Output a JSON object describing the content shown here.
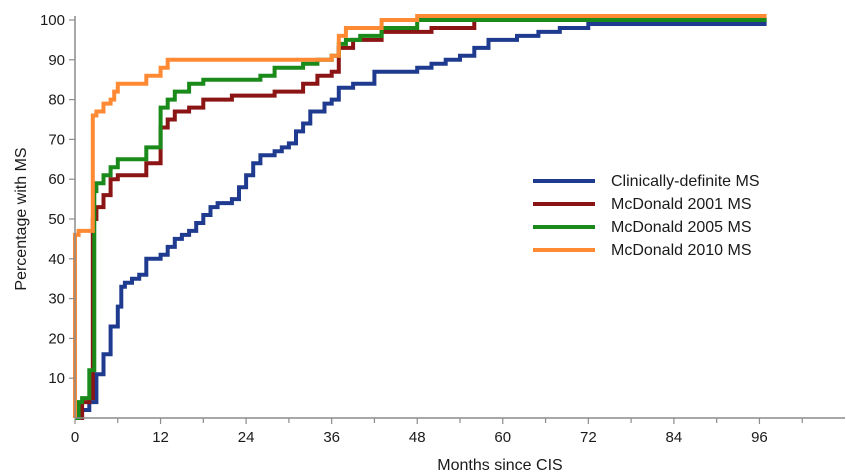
{
  "chart_data": {
    "type": "line",
    "step": true,
    "xlabel": "Months since CIS",
    "ylabel": "Percentage with MS",
    "xlim": [
      0,
      108
    ],
    "ylim": [
      0,
      100
    ],
    "xticks": [
      0,
      12,
      24,
      36,
      48,
      60,
      72,
      84,
      96
    ],
    "yticks": [
      10,
      20,
      30,
      40,
      50,
      60,
      70,
      80,
      90,
      100
    ],
    "grid": false,
    "legend_position": "right",
    "series": [
      {
        "name": "Clinically-definite MS",
        "color": "#1f3b8f",
        "points": [
          [
            0,
            0
          ],
          [
            1,
            0
          ],
          [
            1,
            2
          ],
          [
            2,
            2
          ],
          [
            2,
            4
          ],
          [
            3,
            4
          ],
          [
            3,
            11
          ],
          [
            4,
            11
          ],
          [
            4,
            16
          ],
          [
            5,
            16
          ],
          [
            5,
            23
          ],
          [
            6,
            23
          ],
          [
            6,
            28
          ],
          [
            6.5,
            28
          ],
          [
            6.5,
            33
          ],
          [
            7,
            33
          ],
          [
            7,
            34
          ],
          [
            8,
            34
          ],
          [
            8,
            35
          ],
          [
            9,
            35
          ],
          [
            9,
            36
          ],
          [
            10,
            36
          ],
          [
            10,
            40
          ],
          [
            12,
            40
          ],
          [
            12,
            41
          ],
          [
            13,
            41
          ],
          [
            13,
            43
          ],
          [
            14,
            43
          ],
          [
            14,
            45
          ],
          [
            15,
            45
          ],
          [
            15,
            46
          ],
          [
            16,
            46
          ],
          [
            16,
            47
          ],
          [
            17,
            47
          ],
          [
            17,
            49
          ],
          [
            18,
            49
          ],
          [
            18,
            51
          ],
          [
            19,
            51
          ],
          [
            19,
            53
          ],
          [
            20,
            53
          ],
          [
            20,
            54
          ],
          [
            21,
            54
          ],
          [
            21,
            54
          ],
          [
            22,
            54
          ],
          [
            22,
            55
          ],
          [
            23,
            55
          ],
          [
            23,
            58
          ],
          [
            24,
            58
          ],
          [
            24,
            61
          ],
          [
            25,
            61
          ],
          [
            25,
            64
          ],
          [
            26,
            64
          ],
          [
            26,
            66
          ],
          [
            28,
            66
          ],
          [
            28,
            67
          ],
          [
            29,
            67
          ],
          [
            29,
            68
          ],
          [
            30,
            68
          ],
          [
            30,
            69
          ],
          [
            31,
            69
          ],
          [
            31,
            72
          ],
          [
            32,
            72
          ],
          [
            32,
            74
          ],
          [
            33,
            74
          ],
          [
            33,
            77
          ],
          [
            35,
            77
          ],
          [
            35,
            79
          ],
          [
            36,
            79
          ],
          [
            36,
            80
          ],
          [
            37,
            80
          ],
          [
            37,
            83
          ],
          [
            39,
            83
          ],
          [
            39,
            84
          ],
          [
            42,
            84
          ],
          [
            42,
            87
          ],
          [
            48,
            87
          ],
          [
            48,
            88
          ],
          [
            50,
            88
          ],
          [
            50,
            89
          ],
          [
            52,
            89
          ],
          [
            52,
            90
          ],
          [
            54,
            90
          ],
          [
            54,
            91
          ],
          [
            56,
            91
          ],
          [
            56,
            93
          ],
          [
            58,
            93
          ],
          [
            58,
            95
          ],
          [
            62,
            95
          ],
          [
            62,
            96
          ],
          [
            65,
            96
          ],
          [
            65,
            97
          ],
          [
            68,
            97
          ],
          [
            68,
            98
          ],
          [
            72,
            98
          ],
          [
            72,
            99
          ],
          [
            97,
            99
          ]
        ]
      },
      {
        "name": "McDonald 2001 MS",
        "color": "#8b1414",
        "points": [
          [
            0,
            0
          ],
          [
            1,
            0
          ],
          [
            1,
            4
          ],
          [
            2,
            4
          ],
          [
            2,
            5
          ],
          [
            2.5,
            5
          ],
          [
            2.5,
            50
          ],
          [
            3,
            50
          ],
          [
            3,
            53
          ],
          [
            4,
            53
          ],
          [
            4,
            56
          ],
          [
            5,
            56
          ],
          [
            5,
            60
          ],
          [
            6,
            60
          ],
          [
            6,
            61
          ],
          [
            10,
            61
          ],
          [
            10,
            64
          ],
          [
            12,
            64
          ],
          [
            12,
            73
          ],
          [
            13,
            73
          ],
          [
            13,
            75
          ],
          [
            14,
            75
          ],
          [
            14,
            77
          ],
          [
            16,
            77
          ],
          [
            16,
            78
          ],
          [
            18,
            78
          ],
          [
            18,
            80
          ],
          [
            22,
            80
          ],
          [
            22,
            81
          ],
          [
            28,
            81
          ],
          [
            28,
            82
          ],
          [
            32,
            82
          ],
          [
            32,
            84
          ],
          [
            34,
            84
          ],
          [
            34,
            86
          ],
          [
            36,
            86
          ],
          [
            36,
            87
          ],
          [
            37,
            87
          ],
          [
            37,
            93
          ],
          [
            39,
            93
          ],
          [
            39,
            95
          ],
          [
            43,
            95
          ],
          [
            43,
            97
          ],
          [
            50,
            97
          ],
          [
            50,
            98
          ],
          [
            56,
            98
          ],
          [
            56,
            100
          ],
          [
            97,
            100
          ]
        ]
      },
      {
        "name": "McDonald 2005 MS",
        "color": "#1a8a1a",
        "points": [
          [
            0,
            0
          ],
          [
            0.5,
            0
          ],
          [
            0.5,
            4
          ],
          [
            1,
            4
          ],
          [
            1,
            5
          ],
          [
            2,
            5
          ],
          [
            2,
            12
          ],
          [
            2.7,
            12
          ],
          [
            2.7,
            57
          ],
          [
            3,
            57
          ],
          [
            3,
            59
          ],
          [
            4,
            59
          ],
          [
            4,
            61
          ],
          [
            5,
            61
          ],
          [
            5,
            63
          ],
          [
            6,
            63
          ],
          [
            6,
            65
          ],
          [
            10,
            65
          ],
          [
            10,
            68
          ],
          [
            12,
            68
          ],
          [
            12,
            78
          ],
          [
            13,
            78
          ],
          [
            13,
            80
          ],
          [
            14,
            80
          ],
          [
            14,
            82
          ],
          [
            16,
            82
          ],
          [
            16,
            84
          ],
          [
            18,
            84
          ],
          [
            18,
            85
          ],
          [
            26,
            85
          ],
          [
            26,
            86
          ],
          [
            28,
            86
          ],
          [
            28,
            88
          ],
          [
            32,
            88
          ],
          [
            32,
            89
          ],
          [
            34,
            89
          ],
          [
            34,
            90
          ],
          [
            36,
            90
          ],
          [
            36,
            91
          ],
          [
            37,
            91
          ],
          [
            37,
            94
          ],
          [
            38,
            94
          ],
          [
            38,
            95
          ],
          [
            40,
            95
          ],
          [
            40,
            96
          ],
          [
            43,
            96
          ],
          [
            43,
            98
          ],
          [
            48,
            98
          ],
          [
            48,
            100
          ],
          [
            97,
            100
          ]
        ]
      },
      {
        "name": "McDonald 2010 MS",
        "color": "#ff8a33",
        "points": [
          [
            0,
            0
          ],
          [
            0,
            46
          ],
          [
            0.5,
            46
          ],
          [
            0.5,
            47
          ],
          [
            2.5,
            47
          ],
          [
            2.5,
            76
          ],
          [
            3,
            76
          ],
          [
            3,
            77
          ],
          [
            4,
            77
          ],
          [
            4,
            79
          ],
          [
            5,
            79
          ],
          [
            5,
            80
          ],
          [
            5.5,
            80
          ],
          [
            5.5,
            82
          ],
          [
            6,
            82
          ],
          [
            6,
            84
          ],
          [
            10,
            84
          ],
          [
            10,
            86
          ],
          [
            12,
            86
          ],
          [
            12,
            88
          ],
          [
            13,
            88
          ],
          [
            13,
            90
          ],
          [
            36,
            90
          ],
          [
            36,
            91
          ],
          [
            37,
            91
          ],
          [
            37,
            96
          ],
          [
            38,
            96
          ],
          [
            38,
            98
          ],
          [
            43,
            98
          ],
          [
            43,
            100
          ],
          [
            48,
            100
          ],
          [
            48,
            101
          ],
          [
            97,
            101
          ]
        ]
      }
    ]
  }
}
